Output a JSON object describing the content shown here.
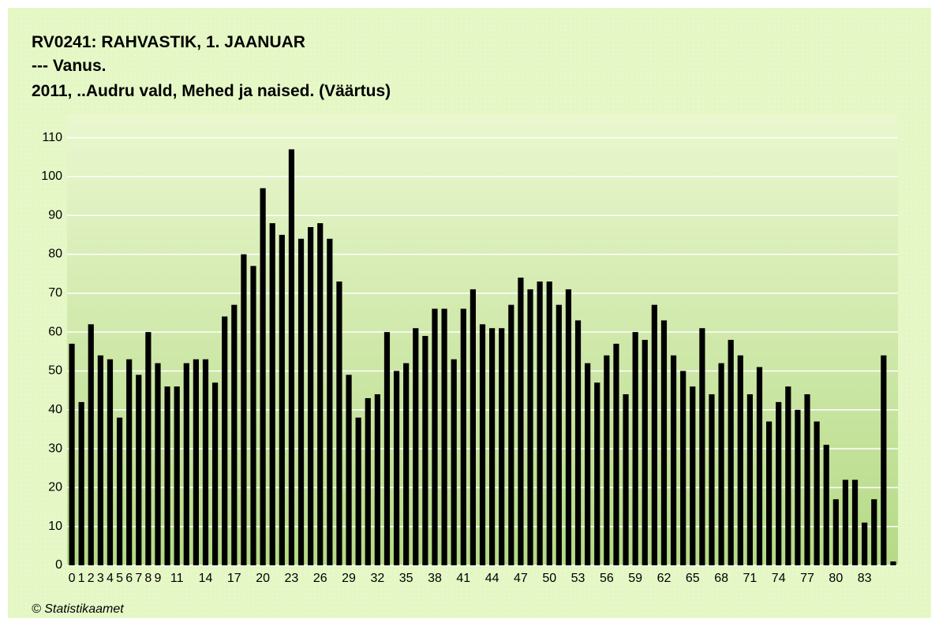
{
  "chart_data": {
    "type": "bar",
    "title": "RV0241: RAHVASTIK, 1. JAANUAR",
    "subtitle": "--- Vanus.",
    "subtitle2": "2011, ..Audru vald, Mehed ja naised. (Väärtus)",
    "footer": "© Statistikaamet",
    "categories": [
      "0",
      "1",
      "2",
      "3",
      "4",
      "5",
      "6",
      "7",
      "8",
      "9",
      null,
      "11",
      null,
      null,
      "14",
      null,
      null,
      "17",
      null,
      null,
      "20",
      null,
      null,
      "23",
      null,
      null,
      "26",
      null,
      null,
      "29",
      null,
      null,
      "32",
      null,
      null,
      "35",
      null,
      null,
      "38",
      null,
      null,
      "41",
      null,
      null,
      "44",
      null,
      null,
      "47",
      null,
      null,
      "50",
      null,
      null,
      "53",
      null,
      null,
      "56",
      null,
      null,
      "59",
      null,
      null,
      "62",
      null,
      null,
      "65",
      null,
      null,
      "68",
      null,
      null,
      "71",
      null,
      null,
      "74",
      null,
      null,
      "77",
      null,
      null,
      "80",
      null,
      null,
      "83",
      null,
      null,
      null
    ],
    "values": [
      57,
      42,
      62,
      54,
      53,
      38,
      53,
      49,
      60,
      52,
      46,
      46,
      52,
      53,
      53,
      47,
      64,
      67,
      80,
      77,
      97,
      88,
      85,
      107,
      84,
      87,
      88,
      84,
      73,
      49,
      38,
      43,
      44,
      60,
      50,
      52,
      61,
      59,
      66,
      66,
      53,
      66,
      71,
      62,
      61,
      61,
      67,
      74,
      71,
      73,
      73,
      67,
      71,
      63,
      52,
      47,
      54,
      57,
      44,
      60,
      58,
      67,
      63,
      54,
      50,
      46,
      61,
      44,
      52,
      58,
      54,
      44,
      51,
      37,
      42,
      46,
      40,
      44,
      37,
      31,
      17,
      22,
      22,
      11,
      17,
      54,
      1
    ],
    "color": "#000000",
    "ylim": [
      0,
      116
    ],
    "yticks": [
      0,
      10,
      20,
      30,
      40,
      50,
      60,
      70,
      80,
      90,
      100,
      110
    ],
    "grid": true
  }
}
